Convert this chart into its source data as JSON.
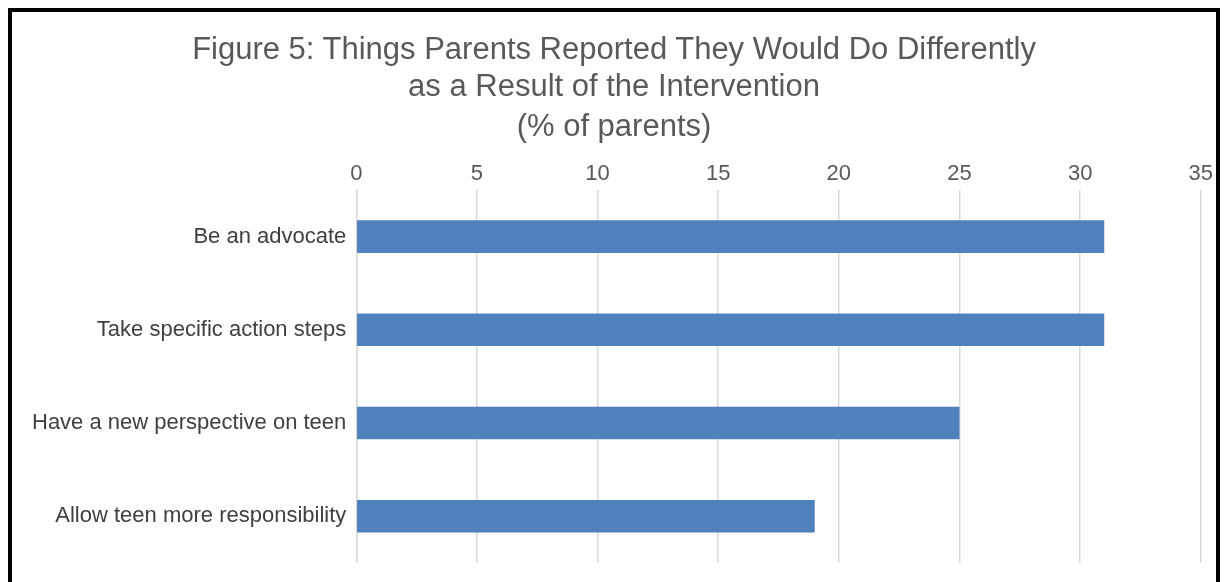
{
  "chart_data": {
    "type": "bar",
    "orientation": "horizontal",
    "title": "Figure 5: Things Parents Reported They Would Do Differently\nas a Result of the Intervention",
    "subtitle": "(% of parents)",
    "categories": [
      "Be an advocate",
      "Take specific action steps",
      "Have a new perspective on teen",
      "Allow teen more responsibility"
    ],
    "values": [
      31,
      31,
      25,
      19
    ],
    "color": "#4f81bd",
    "xlim": [
      0,
      35
    ],
    "xticks": [
      0,
      5,
      10,
      15,
      20,
      25,
      30,
      35
    ],
    "grid": "x"
  }
}
